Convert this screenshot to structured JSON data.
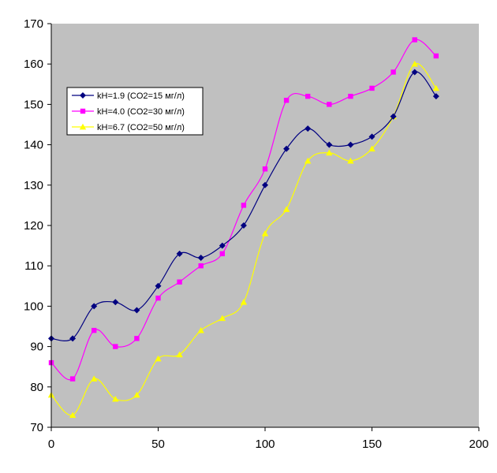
{
  "chart_data": {
    "type": "line",
    "title": "",
    "xlabel": "",
    "ylabel": "",
    "xlim": [
      0,
      200
    ],
    "ylim": [
      70,
      170
    ],
    "xticks": [
      0,
      50,
      100,
      150,
      200
    ],
    "yticks": [
      70,
      80,
      90,
      100,
      110,
      120,
      130,
      140,
      150,
      160,
      170
    ],
    "grid": false,
    "plot_background": "#c0c0c0",
    "legend_position": "top-left",
    "x": [
      0,
      10,
      20,
      30,
      40,
      50,
      60,
      70,
      80,
      90,
      100,
      110,
      120,
      130,
      140,
      150,
      160,
      170,
      180
    ],
    "series": [
      {
        "name": "kH=1.9 (CO2=15 мг/л)",
        "color": "#000080",
        "marker": "diamond",
        "values": [
          92,
          92,
          100,
          101,
          99,
          105,
          113,
          112,
          115,
          120,
          130,
          139,
          144,
          140,
          140,
          142,
          147,
          158,
          152
        ]
      },
      {
        "name": "kH=4.0 (CO2=30 мг/л)",
        "color": "#ff00ff",
        "marker": "square",
        "values": [
          86,
          82,
          94,
          90,
          92,
          102,
          106,
          110,
          113,
          125,
          134,
          151,
          152,
          150,
          152,
          154,
          158,
          166,
          162
        ]
      },
      {
        "name": "kH=6.7 (CO2=50 мг/л)",
        "color": "#ffff00",
        "marker": "triangle",
        "values": [
          78,
          73,
          82,
          77,
          78,
          87,
          88,
          94,
          97,
          101,
          118,
          124,
          136,
          138,
          136,
          139,
          147,
          160,
          154
        ]
      }
    ]
  }
}
